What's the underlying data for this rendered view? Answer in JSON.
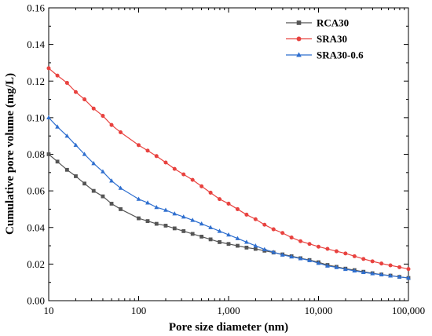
{
  "chart_data": {
    "type": "line",
    "title": "",
    "xlabel": "Pore size diameter (nm)",
    "ylabel": "Cumulative pore volume (mg/L)",
    "xscale": "log",
    "xlim": [
      10,
      100000
    ],
    "ylim": [
      0,
      0.16
    ],
    "xticks": [
      10,
      100,
      1000,
      10000,
      100000
    ],
    "xtick_labels": [
      "10",
      "100",
      "1,000",
      "10,000",
      "100,000"
    ],
    "yticks": [
      0,
      0.02,
      0.04,
      0.06,
      0.08,
      0.1,
      0.12,
      0.14,
      0.16
    ],
    "ytick_labels": [
      "0.00",
      "0.02",
      "0.04",
      "0.06",
      "0.08",
      "0.10",
      "0.12",
      "0.14",
      "0.16"
    ],
    "grid": false,
    "legend_position": "top-right",
    "series": [
      {
        "name": "RCA30",
        "color": "#555555",
        "marker": "square",
        "x": [
          10,
          12.5,
          16,
          20,
          25,
          31.6,
          40,
          50,
          63,
          100,
          126,
          158,
          200,
          251,
          316,
          398,
          501,
          631,
          794,
          1000,
          1259,
          1585,
          1995,
          2512,
          3162,
          3981,
          5012,
          6310,
          7943,
          10000,
          12589,
          15849,
          19953,
          25119,
          31623,
          39811,
          50119,
          63096,
          79433,
          100000
        ],
        "y": [
          0.08,
          0.076,
          0.0715,
          0.068,
          0.064,
          0.06,
          0.057,
          0.053,
          0.05,
          0.045,
          0.0435,
          0.042,
          0.041,
          0.0395,
          0.038,
          0.0365,
          0.035,
          0.0335,
          0.032,
          0.031,
          0.03,
          0.029,
          0.0283,
          0.0273,
          0.0263,
          0.0253,
          0.0243,
          0.0232,
          0.0222,
          0.021,
          0.0195,
          0.0185,
          0.0175,
          0.0167,
          0.0158,
          0.015,
          0.0143,
          0.0137,
          0.013,
          0.0124
        ]
      },
      {
        "name": "SRA30",
        "color": "#e8423f",
        "marker": "circle",
        "x": [
          10,
          12.5,
          16,
          20,
          25,
          31.6,
          40,
          50,
          63,
          100,
          126,
          158,
          200,
          251,
          316,
          398,
          501,
          631,
          794,
          1000,
          1259,
          1585,
          1995,
          2512,
          3162,
          3981,
          5012,
          6310,
          7943,
          10000,
          12589,
          15849,
          19953,
          25119,
          31623,
          39811,
          50119,
          63096,
          79433,
          100000
        ],
        "y": [
          0.127,
          0.123,
          0.119,
          0.114,
          0.11,
          0.105,
          0.101,
          0.096,
          0.092,
          0.085,
          0.082,
          0.079,
          0.0755,
          0.072,
          0.069,
          0.066,
          0.0625,
          0.059,
          0.0555,
          0.053,
          0.05,
          0.047,
          0.0445,
          0.0415,
          0.039,
          0.037,
          0.0345,
          0.0325,
          0.031,
          0.0295,
          0.0283,
          0.027,
          0.0258,
          0.0243,
          0.0228,
          0.0215,
          0.0203,
          0.0193,
          0.0183,
          0.0173
        ]
      },
      {
        "name": "SRA30-0.6",
        "color": "#2f6fcf",
        "marker": "triangle",
        "x": [
          10,
          12.5,
          16,
          20,
          25,
          31.6,
          40,
          50,
          63,
          100,
          126,
          158,
          200,
          251,
          316,
          398,
          501,
          631,
          794,
          1000,
          1259,
          1585,
          1995,
          2512,
          3162,
          3981,
          5012,
          6310,
          7943,
          10000,
          12589,
          15849,
          19953,
          25119,
          31623,
          39811,
          50119,
          63096,
          79433,
          100000
        ],
        "y": [
          0.1,
          0.095,
          0.09,
          0.085,
          0.08,
          0.075,
          0.0705,
          0.0655,
          0.0615,
          0.0555,
          0.0535,
          0.051,
          0.0495,
          0.0475,
          0.0458,
          0.044,
          0.042,
          0.04,
          0.038,
          0.036,
          0.034,
          0.032,
          0.03,
          0.028,
          0.0265,
          0.025,
          0.024,
          0.023,
          0.022,
          0.0205,
          0.019,
          0.0182,
          0.0172,
          0.0163,
          0.0155,
          0.0148,
          0.0142,
          0.0136,
          0.013,
          0.0124
        ]
      }
    ]
  }
}
